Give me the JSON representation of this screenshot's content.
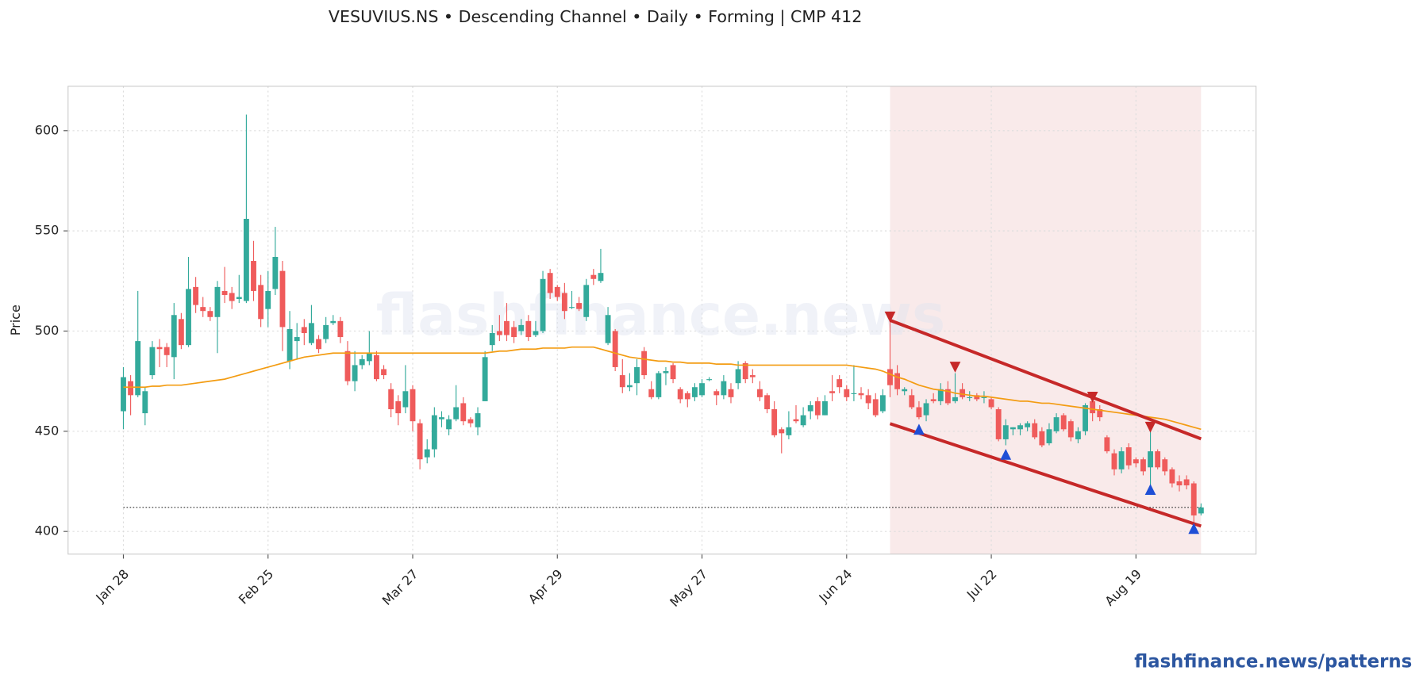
{
  "chart_data": {
    "type": "candlestick",
    "title": "VESUVIUS.NS  •  Descending Channel  •  Daily  •  Forming  |  CMP 412",
    "ylabel": "Price",
    "watermark": "flashfinance.news",
    "footer": "flashfinance.news/patterns",
    "categories": [
      "Jan 28",
      null,
      null,
      null,
      null,
      null,
      null,
      null,
      null,
      null,
      null,
      null,
      null,
      null,
      null,
      null,
      null,
      null,
      null,
      null,
      "Feb 25",
      null,
      null,
      null,
      null,
      null,
      null,
      null,
      null,
      null,
      null,
      null,
      null,
      null,
      null,
      null,
      null,
      null,
      null,
      null,
      "Mar 27",
      null,
      null,
      null,
      null,
      null,
      null,
      null,
      null,
      null,
      null,
      null,
      null,
      null,
      null,
      null,
      null,
      null,
      null,
      null,
      "Apr 29",
      null,
      null,
      null,
      null,
      null,
      null,
      null,
      null,
      null,
      null,
      null,
      null,
      null,
      null,
      null,
      null,
      null,
      null,
      null,
      "May 27",
      null,
      null,
      null,
      null,
      null,
      null,
      null,
      null,
      null,
      null,
      null,
      null,
      null,
      null,
      null,
      null,
      null,
      null,
      null,
      "Jun 24",
      null,
      null,
      null,
      null,
      null,
      null,
      null,
      null,
      null,
      null,
      null,
      null,
      null,
      null,
      null,
      null,
      null,
      null,
      null,
      "Jul 22",
      null,
      null,
      null,
      null,
      null,
      null,
      null,
      null,
      null,
      null,
      null,
      null,
      null,
      null,
      null,
      null,
      null,
      null,
      null,
      "Aug 19",
      null,
      null,
      null,
      null,
      null,
      null,
      null,
      null,
      null
    ],
    "open": [
      460,
      475,
      468,
      459,
      478,
      492,
      492,
      487,
      506,
      493,
      522,
      512,
      510,
      507,
      520,
      519,
      516,
      515,
      535,
      523,
      511,
      521,
      530,
      485,
      495,
      502,
      494,
      496,
      496,
      504,
      505,
      490,
      475,
      483,
      485,
      488,
      481,
      471,
      465,
      462,
      471,
      454,
      437,
      441,
      456,
      451,
      456,
      464,
      456,
      452,
      465,
      493,
      500,
      505,
      502,
      500,
      505,
      498,
      500,
      529,
      522,
      519,
      512,
      514,
      507,
      528,
      525,
      494,
      500,
      478,
      472,
      474,
      490,
      471,
      467,
      479,
      483,
      471,
      469,
      467,
      468,
      476,
      470,
      468,
      471,
      474,
      484,
      478,
      471,
      468,
      461,
      451,
      448,
      456,
      453,
      460,
      465,
      458,
      470,
      476,
      471,
      469,
      469,
      468,
      466,
      460,
      481,
      479,
      470,
      468,
      462,
      458,
      466,
      465,
      471,
      465,
      471,
      467,
      468,
      467,
      466,
      461,
      446,
      451,
      451,
      452,
      454,
      450,
      444,
      450,
      458,
      455,
      446,
      450,
      465,
      461,
      447,
      439,
      431,
      442,
      436,
      436,
      432,
      440,
      436,
      431,
      425,
      426,
      424,
      409
    ],
    "high": [
      482,
      478,
      520,
      472,
      495,
      496,
      494,
      514,
      509,
      537,
      527,
      517,
      512,
      525,
      532,
      522,
      528,
      608,
      545,
      528,
      530,
      552,
      535,
      510,
      504,
      506,
      513,
      498,
      507,
      508,
      507,
      495,
      490,
      488,
      500,
      490,
      483,
      474,
      468,
      483,
      473,
      456,
      446,
      462,
      460,
      458,
      473,
      467,
      457,
      462,
      490,
      503,
      508,
      514,
      505,
      506,
      508,
      505,
      530,
      531,
      523,
      524,
      520,
      517,
      526,
      531,
      541,
      512,
      501,
      486,
      479,
      486,
      492,
      475,
      480,
      482,
      484,
      472,
      470,
      474,
      476,
      477,
      471,
      478,
      474,
      485,
      485,
      481,
      475,
      469,
      465,
      452,
      460,
      463,
      462,
      465,
      467,
      468,
      478,
      478,
      473,
      483,
      472,
      471,
      469,
      471,
      505,
      483,
      472,
      471,
      465,
      466,
      469,
      474,
      475,
      479,
      474,
      470,
      469,
      470,
      467,
      462,
      456,
      452,
      454,
      455,
      456,
      452,
      454,
      459,
      459,
      456,
      452,
      464,
      467,
      463,
      448,
      441,
      442,
      444,
      437,
      437,
      451,
      441,
      437,
      432,
      428,
      428,
      425,
      414
    ],
    "low": [
      451,
      458,
      467,
      453,
      476,
      482,
      482,
      476,
      491,
      492,
      509,
      507,
      505,
      489,
      514,
      511,
      514,
      514,
      515,
      502,
      502,
      518,
      490,
      481,
      486,
      493,
      493,
      489,
      494,
      503,
      494,
      473,
      470,
      481,
      483,
      475,
      476,
      457,
      453,
      459,
      450,
      431,
      434,
      437,
      452,
      448,
      455,
      453,
      452,
      448,
      465,
      490,
      495,
      495,
      494,
      498,
      495,
      497,
      499,
      516,
      515,
      506,
      511,
      510,
      505,
      523,
      524,
      493,
      480,
      469,
      470,
      468,
      476,
      466,
      466,
      473,
      474,
      464,
      462,
      465,
      467,
      475,
      463,
      466,
      464,
      471,
      474,
      474,
      465,
      459,
      447,
      439,
      446,
      454,
      452,
      456,
      456,
      458,
      465,
      469,
      465,
      465,
      466,
      461,
      457,
      459,
      467,
      468,
      468,
      461,
      456,
      455,
      464,
      463,
      463,
      464,
      466,
      465,
      465,
      464,
      461,
      445,
      443,
      448,
      448,
      450,
      446,
      442,
      443,
      449,
      450,
      445,
      444,
      448,
      455,
      455,
      439,
      428,
      429,
      431,
      432,
      428,
      422,
      431,
      428,
      422,
      420,
      421,
      402,
      408
    ],
    "close": [
      477,
      468,
      495,
      470,
      492,
      491,
      488,
      508,
      493,
      521,
      513,
      510,
      507,
      522,
      518,
      515,
      517,
      556,
      520,
      506,
      520,
      537,
      502,
      501,
      497,
      499,
      504,
      491,
      503,
      505,
      497,
      475,
      483,
      486,
      489,
      476,
      478,
      461,
      459,
      470,
      455,
      436,
      441,
      458,
      457,
      456,
      462,
      455,
      454,
      459,
      487,
      499,
      498,
      498,
      497,
      503,
      497,
      500,
      526,
      519,
      517,
      510,
      512,
      511,
      523,
      526,
      529,
      508,
      482,
      472,
      473,
      482,
      478,
      467,
      479,
      480,
      476,
      466,
      466,
      472,
      474,
      476,
      468,
      475,
      467,
      481,
      476,
      477,
      467,
      461,
      448,
      449,
      452,
      455,
      458,
      463,
      458,
      465,
      469,
      472,
      467,
      469,
      468,
      464,
      458,
      468,
      473,
      471,
      471,
      462,
      457,
      464,
      465,
      471,
      464,
      467,
      467,
      467,
      466,
      467,
      462,
      446,
      453,
      452,
      453,
      454,
      447,
      443,
      451,
      457,
      451,
      447,
      450,
      463,
      459,
      457,
      440,
      431,
      440,
      433,
      434,
      430,
      440,
      432,
      430,
      424,
      423,
      423,
      408,
      412
    ],
    "up_color": "#33aa9b",
    "down_color": "#ef5b5b",
    "ma": {
      "color": "#f39c12",
      "values": [
        472,
        472,
        472,
        472,
        472.5,
        472.5,
        473,
        473,
        473,
        473.5,
        474,
        474.5,
        475,
        475.5,
        476,
        477,
        478,
        479,
        480,
        481,
        482,
        483,
        484,
        485,
        486,
        487,
        487.5,
        488,
        488.5,
        489,
        489,
        489,
        489,
        489,
        489,
        489,
        489,
        489,
        489,
        489,
        489,
        489,
        489,
        489,
        489,
        489,
        489,
        489,
        489,
        489,
        489,
        489.5,
        490,
        490,
        490.5,
        491,
        491,
        491,
        491.5,
        491.5,
        491.5,
        491.5,
        492,
        492,
        492,
        492,
        491,
        490,
        489,
        488,
        487,
        486.5,
        486,
        485.5,
        485,
        485,
        484.5,
        484.5,
        484,
        484,
        484,
        484,
        483.5,
        483.5,
        483.5,
        483,
        483,
        483,
        483,
        483,
        483,
        483,
        483,
        483,
        483,
        483,
        483,
        483,
        483,
        483,
        483,
        482.5,
        482,
        481.5,
        481,
        480,
        478.5,
        477,
        476,
        474.5,
        473,
        472,
        471,
        470.5,
        470,
        469,
        468.5,
        468,
        467.5,
        467.5,
        467,
        466.5,
        466,
        465.5,
        465,
        465,
        464.5,
        464,
        464,
        463.5,
        463,
        462.5,
        462,
        461.5,
        461,
        460.5,
        460,
        459.5,
        459,
        458.5,
        458,
        457.5,
        457,
        456.5,
        456,
        455,
        454,
        453,
        452,
        451
      ]
    },
    "cmp_line": {
      "value": 412,
      "color": "#333333"
    },
    "pattern_range": {
      "x": [
        106,
        149
      ],
      "color": "#f7e1e1"
    },
    "channel": {
      "color": "#c62828",
      "upper": {
        "x": [
          106,
          149
        ],
        "values": [
          505.4,
          446.2
        ]
      },
      "lower": {
        "x": [
          106,
          149
        ],
        "values": [
          453.8,
          402.7
        ]
      }
    },
    "pivot_highs": {
      "color": "#c62828",
      "x": [
        106,
        115,
        134,
        142
      ],
      "values": [
        507,
        482,
        467,
        452
      ]
    },
    "pivot_lows": {
      "color": "#1f4fd6",
      "x": [
        110,
        122,
        142,
        148
      ],
      "values": [
        451,
        438.5,
        421,
        401.5
      ]
    },
    "xlim": [
      -7.65,
      156.6
    ],
    "ylim": [
      388.7,
      622.2
    ],
    "yticks": [
      400,
      450,
      500,
      550,
      600
    ],
    "grid": true
  }
}
